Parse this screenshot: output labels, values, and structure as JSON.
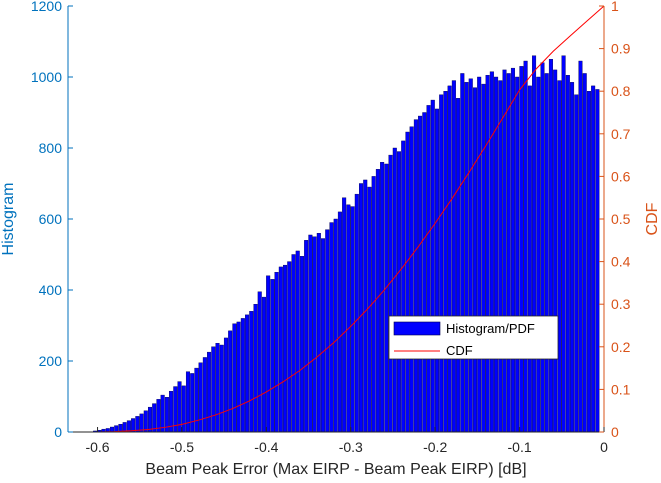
{
  "chart_data": {
    "type": "bar",
    "xlabel": "Beam Peak Error (Max EIRP - Beam Peak EIRP) [dB]",
    "ylabel_left": "Histogram",
    "ylabel_right": "CDF",
    "xlim": [
      -0.635,
      0
    ],
    "ylim_left": [
      0,
      1200
    ],
    "ylim_right": [
      0,
      1
    ],
    "x_ticks": [
      "-0.6",
      "-0.5",
      "-0.4",
      "-0.3",
      "-0.2",
      "-0.1",
      "0"
    ],
    "x_tick_values": [
      -0.6,
      -0.5,
      -0.4,
      -0.3,
      -0.2,
      -0.1,
      0
    ],
    "y_ticks_left": [
      "0",
      "200",
      "400",
      "600",
      "800",
      "1000",
      "1200"
    ],
    "y_tick_values_left": [
      0,
      200,
      400,
      600,
      800,
      1000,
      1200
    ],
    "y_ticks_right": [
      "0",
      "0.1",
      "0.2",
      "0.3",
      "0.4",
      "0.5",
      "0.6",
      "0.7",
      "0.8",
      "0.9",
      "1"
    ],
    "y_tick_values_right": [
      0,
      0.1,
      0.2,
      0.3,
      0.4,
      0.5,
      0.6,
      0.7,
      0.8,
      0.9,
      1
    ],
    "legend": {
      "position": "lower-right",
      "entries": [
        "Histogram/PDF",
        "CDF"
      ]
    },
    "colors": {
      "bar_fill": "#0000ff",
      "bar_edge": "#00004d",
      "cdf_line": "#ff0000",
      "left_axis": "#0072bd",
      "right_axis": "#d95319",
      "text": "#262626"
    },
    "histogram": {
      "bin_width": 0.005,
      "x_end": [
        -0.6,
        -0.595,
        -0.59,
        -0.585,
        -0.58,
        -0.575,
        -0.57,
        -0.565,
        -0.56,
        -0.555,
        -0.55,
        -0.545,
        -0.54,
        -0.535,
        -0.53,
        -0.525,
        -0.52,
        -0.515,
        -0.51,
        -0.505,
        -0.5,
        -0.495,
        -0.49,
        -0.485,
        -0.48,
        -0.475,
        -0.47,
        -0.465,
        -0.46,
        -0.455,
        -0.45,
        -0.445,
        -0.44,
        -0.435,
        -0.43,
        -0.425,
        -0.42,
        -0.415,
        -0.41,
        -0.405,
        -0.4,
        -0.395,
        -0.39,
        -0.385,
        -0.38,
        -0.375,
        -0.37,
        -0.365,
        -0.36,
        -0.355,
        -0.35,
        -0.345,
        -0.34,
        -0.335,
        -0.33,
        -0.325,
        -0.32,
        -0.315,
        -0.31,
        -0.305,
        -0.3,
        -0.295,
        -0.29,
        -0.285,
        -0.28,
        -0.275,
        -0.27,
        -0.265,
        -0.26,
        -0.255,
        -0.25,
        -0.245,
        -0.24,
        -0.235,
        -0.23,
        -0.225,
        -0.22,
        -0.215,
        -0.21,
        -0.205,
        -0.2,
        -0.195,
        -0.19,
        -0.185,
        -0.18,
        -0.175,
        -0.17,
        -0.165,
        -0.16,
        -0.155,
        -0.15,
        -0.145,
        -0.14,
        -0.135,
        -0.13,
        -0.125,
        -0.12,
        -0.115,
        -0.11,
        -0.105,
        -0.1,
        -0.095,
        -0.09,
        -0.085,
        -0.08,
        -0.075,
        -0.07,
        -0.065,
        -0.06,
        -0.055,
        -0.05,
        -0.045,
        -0.04,
        -0.035,
        -0.03,
        -0.025,
        -0.02,
        -0.015,
        -0.01,
        -0.005
      ],
      "counts": [
        3,
        5,
        8,
        10,
        14,
        18,
        22,
        27,
        32,
        38,
        44,
        51,
        60,
        70,
        80,
        92,
        104,
        98,
        115,
        128,
        142,
        130,
        170,
        165,
        180,
        195,
        210,
        225,
        240,
        250,
        245,
        265,
        285,
        305,
        310,
        320,
        330,
        340,
        360,
        395,
        380,
        440,
        430,
        450,
        465,
        470,
        480,
        500,
        510,
        495,
        540,
        555,
        550,
        560,
        545,
        570,
        590,
        600,
        620,
        660,
        640,
        635,
        670,
        700,
        710,
        690,
        720,
        740,
        760,
        755,
        780,
        800,
        790,
        820,
        845,
        860,
        880,
        890,
        900,
        920,
        935,
        910,
        950,
        960,
        975,
        990,
        940,
        1010,
        985,
        995,
        970,
        1000,
        980,
        1005,
        1015,
        1000,
        990,
        1020,
        1010,
        1025,
        1000,
        1030,
        1045,
        975,
        1060,
        1000,
        1040,
        1010,
        1050,
        1020,
        990,
        1060,
        1005,
        985,
        950,
        1045,
        1010,
        960,
        975,
        965
      ]
    },
    "cdf": {
      "x": [
        -0.6,
        -0.58,
        -0.56,
        -0.54,
        -0.52,
        -0.5,
        -0.48,
        -0.46,
        -0.44,
        -0.42,
        -0.4,
        -0.38,
        -0.36,
        -0.34,
        -0.32,
        -0.3,
        -0.28,
        -0.26,
        -0.24,
        -0.22,
        -0.2,
        -0.18,
        -0.16,
        -0.14,
        -0.12,
        -0.1,
        -0.08,
        -0.06,
        -0.04,
        -0.02,
        0
      ],
      "y": [
        0,
        0.001,
        0.003,
        0.006,
        0.011,
        0.018,
        0.028,
        0.04,
        0.055,
        0.073,
        0.094,
        0.118,
        0.145,
        0.176,
        0.21,
        0.248,
        0.289,
        0.334,
        0.383,
        0.435,
        0.49,
        0.548,
        0.609,
        0.672,
        0.737,
        0.803,
        0.853,
        0.894,
        0.93,
        0.965,
        1.0
      ]
    }
  }
}
